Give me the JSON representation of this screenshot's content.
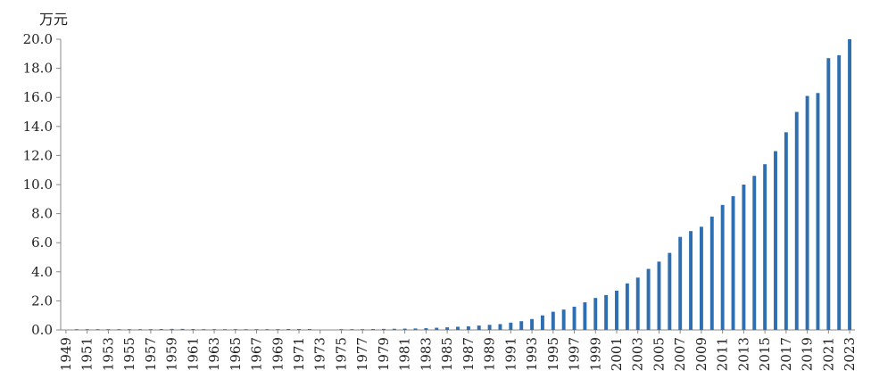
{
  "chart_data": {
    "type": "bar",
    "title": "",
    "unit_label": "万元",
    "xlabel": "",
    "ylabel": "",
    "ylim": [
      0,
      20
    ],
    "yticks": [
      "0.0",
      "2.0",
      "4.0",
      "6.0",
      "8.0",
      "10.0",
      "12.0",
      "14.0",
      "16.0",
      "18.0",
      "20.0"
    ],
    "xtick_labels": [
      "1949",
      "1951",
      "1953",
      "1955",
      "1957",
      "1959",
      "1961",
      "1963",
      "1965",
      "1967",
      "1969",
      "1971",
      "1973",
      "1975",
      "1977",
      "1979",
      "1981",
      "1983",
      "1985",
      "1987",
      "1989",
      "1991",
      "1993",
      "1995",
      "1997",
      "1999",
      "2001",
      "2003",
      "2005",
      "2007",
      "2009",
      "2011",
      "2013",
      "2015",
      "2017",
      "2019",
      "2021",
      "2023"
    ],
    "categories": [
      "1949",
      "1950",
      "1951",
      "1952",
      "1953",
      "1954",
      "1955",
      "1956",
      "1957",
      "1958",
      "1959",
      "1960",
      "1961",
      "1962",
      "1963",
      "1964",
      "1965",
      "1966",
      "1967",
      "1968",
      "1969",
      "1970",
      "1971",
      "1972",
      "1973",
      "1974",
      "1975",
      "1976",
      "1977",
      "1978",
      "1979",
      "1980",
      "1981",
      "1982",
      "1983",
      "1984",
      "1985",
      "1986",
      "1987",
      "1988",
      "1989",
      "1990",
      "1991",
      "1992",
      "1993",
      "1994",
      "1995",
      "1996",
      "1997",
      "1998",
      "1999",
      "2000",
      "2001",
      "2002",
      "2003",
      "2004",
      "2005",
      "2006",
      "2007",
      "2008",
      "2009",
      "2010",
      "2011",
      "2012",
      "2013",
      "2014",
      "2015",
      "2016",
      "2017",
      "2018",
      "2019",
      "2020",
      "2021",
      "2022",
      "2023"
    ],
    "values": [
      0,
      0.05,
      0.05,
      0.05,
      0.05,
      0.05,
      0.05,
      0.05,
      0.05,
      0.06,
      0.07,
      0.07,
      0.06,
      0.05,
      0.05,
      0.05,
      0.05,
      0.05,
      0.05,
      0.05,
      0.05,
      0.06,
      0.06,
      0.06,
      0,
      0,
      0.05,
      0.05,
      0.05,
      0.06,
      0.07,
      0.08,
      0.09,
      0.1,
      0.12,
      0.15,
      0.18,
      0.22,
      0.25,
      0.3,
      0.35,
      0.4,
      0.5,
      0.6,
      0.75,
      1.0,
      1.25,
      1.4,
      1.6,
      1.9,
      2.2,
      2.4,
      2.7,
      3.2,
      3.6,
      4.2,
      4.7,
      5.3,
      6.4,
      6.8,
      7.1,
      7.8,
      8.6,
      9.2,
      10.0,
      10.6,
      11.4,
      12.3,
      13.6,
      15.0,
      16.1,
      16.3,
      18.7,
      18.9,
      20.0
    ],
    "grid": false,
    "legend": "none"
  }
}
